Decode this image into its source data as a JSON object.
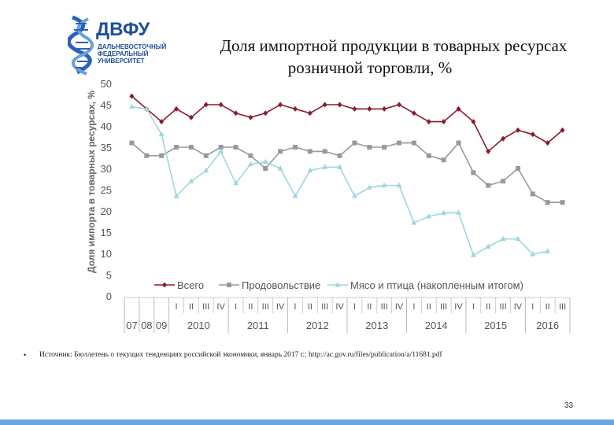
{
  "logo": {
    "main": "ДВФУ",
    "sub_lines": [
      "ДАЛЬНЕВОСТОЧНЫЙ",
      "ФЕДЕРАЛЬНЫЙ",
      "УНИВЕРСИТЕТ"
    ]
  },
  "slide": {
    "title_line1": "Доля импортной продукции в товарных ресурсах",
    "title_line2": "розничной торговли, %",
    "bullet": "•",
    "source": "Источник: Бюллетень о текущих тенденциях российской экономики, январь 2017 г.: http://ac.gov.ru/files/publication/a/11681.pdf",
    "page_number": "33"
  },
  "colors": {
    "total": "#8b1a2e",
    "food": "#999999",
    "meat": "#9fd6e2",
    "accent_bar": "#6fa5dd",
    "logo": "#1f4e9c"
  },
  "chart_data": {
    "type": "line",
    "ylabel": "Доля импорта в товарных ресурсах, %",
    "ylim": [
      0,
      50
    ],
    "yticks": [
      0,
      5,
      10,
      15,
      20,
      25,
      30,
      35,
      40,
      45,
      50
    ],
    "grid": false,
    "legend_position": "bottom",
    "annual_labels": [
      "07",
      "08",
      "09"
    ],
    "quarter_labels": [
      "I",
      "II",
      "III",
      "IV"
    ],
    "year_groups": [
      {
        "year": "2010",
        "quarters": [
          "I",
          "II",
          "III",
          "IV"
        ]
      },
      {
        "year": "2011",
        "quarters": [
          "I",
          "II",
          "III",
          "IV"
        ]
      },
      {
        "year": "2012",
        "quarters": [
          "I",
          "II",
          "III",
          "IV"
        ]
      },
      {
        "year": "2013",
        "quarters": [
          "I",
          "II",
          "III",
          "IV"
        ]
      },
      {
        "year": "2014",
        "quarters": [
          "I",
          "II",
          "III",
          "IV"
        ]
      },
      {
        "year": "2015",
        "quarters": [
          "I",
          "II",
          "III",
          "IV"
        ]
      },
      {
        "year": "2016",
        "quarters": [
          "I",
          "II",
          "III"
        ]
      }
    ],
    "series": [
      {
        "name": "Всего",
        "marker": "diamond",
        "values": [
          47,
          44,
          41,
          44,
          42,
          45,
          45,
          43,
          42,
          43,
          45,
          44,
          43,
          45,
          45,
          44,
          44,
          44,
          45,
          43,
          41,
          41,
          44,
          41,
          34,
          37,
          39,
          38,
          36,
          39
        ]
      },
      {
        "name": "Продовольствие",
        "marker": "square",
        "values": [
          36,
          33,
          33,
          35,
          35,
          33,
          35,
          35,
          33,
          30,
          34,
          35,
          34,
          34,
          33,
          36,
          35,
          35,
          36,
          36,
          33,
          32,
          36,
          29,
          26,
          27,
          30,
          24,
          22,
          22
        ]
      },
      {
        "name": "Мясо и птица (накопленным итогом)",
        "marker": "triangle",
        "values": [
          44.5,
          44,
          38,
          23.5,
          27,
          29.5,
          34,
          26.5,
          31,
          31.5,
          30,
          23.5,
          29.5,
          30.3,
          30.3,
          23.5,
          25.5,
          26,
          26,
          17.2,
          18.7,
          19.5,
          19.6,
          9.6,
          11.6,
          13.4,
          13.4,
          9.8,
          10.5,
          null
        ]
      }
    ]
  }
}
